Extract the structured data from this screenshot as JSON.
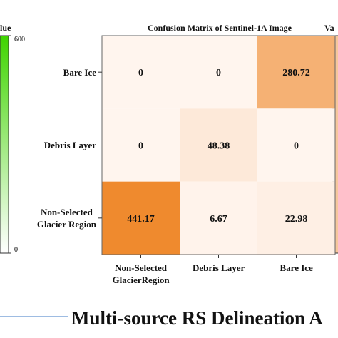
{
  "chart_data": {
    "type": "heatmap",
    "title": "Confusion Matrix of Sentinel-1A Image",
    "x_categories": [
      "Non-Selected\nGlacierRegion",
      "Debris Layer",
      "Bare Ice"
    ],
    "y_categories": [
      "Bare Ice",
      "Debris Layer",
      "Non-Selected\nGlacier Region"
    ],
    "values": [
      [
        0,
        0,
        280.72
      ],
      [
        0,
        48.38,
        0
      ],
      [
        441.17,
        6.67,
        22.98
      ]
    ],
    "colorbar_label": "lue",
    "clim": [
      0,
      600
    ],
    "cticks": [
      0,
      600
    ],
    "low_color": "#fff5ee",
    "high_color": "#ef8a2e",
    "colorbar_color": "#3fd400",
    "annotations": [
      "Va",
      "Multi-source RS Delineation A"
    ]
  }
}
